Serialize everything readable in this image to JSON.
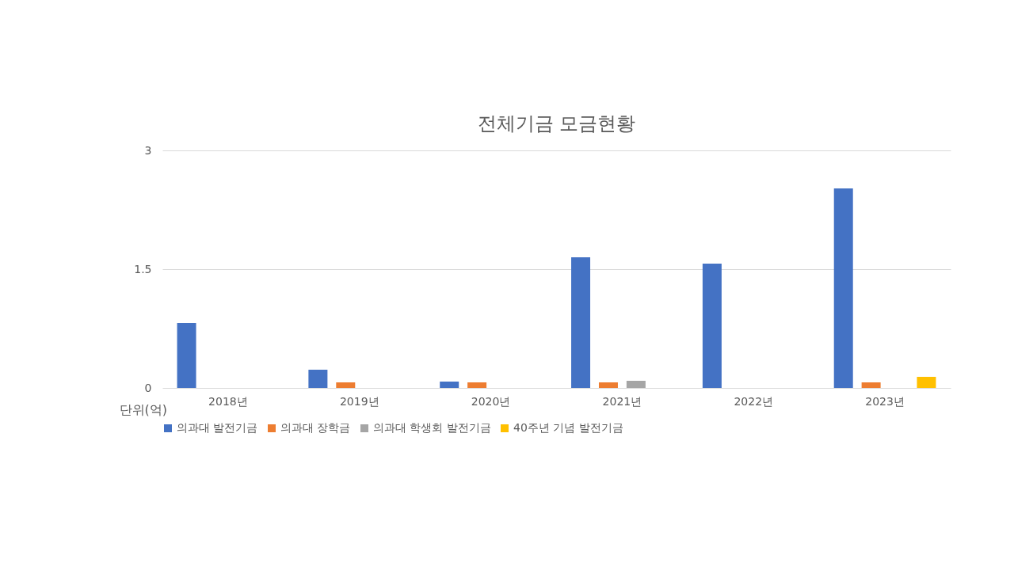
{
  "chart_data": {
    "type": "bar",
    "title": "전체기금 모금현황",
    "categories": [
      "2018년",
      "2019년",
      "2020년",
      "2021년",
      "2022년",
      "2023년"
    ],
    "series": [
      {
        "name": "의과대 발전기금",
        "color": "#4472c4",
        "values": [
          0.82,
          0.23,
          0.08,
          1.65,
          1.57,
          2.52
        ]
      },
      {
        "name": "의과대 장학금",
        "color": "#ed7d31",
        "values": [
          null,
          0.07,
          0.07,
          0.07,
          null,
          0.07
        ]
      },
      {
        "name": "의과대 학생회 발전기금",
        "color": "#a5a5a5",
        "values": [
          null,
          null,
          null,
          0.09,
          null,
          null
        ]
      },
      {
        "name": "40주년 기념 발전기금",
        "color": "#ffc000",
        "values": [
          null,
          null,
          null,
          null,
          null,
          0.14
        ]
      }
    ],
    "ylim": [
      0,
      3
    ],
    "yticks": [
      0,
      1.5,
      3
    ],
    "grid": "y",
    "legend": "bottom",
    "annotations": [
      "단위(억)"
    ]
  }
}
